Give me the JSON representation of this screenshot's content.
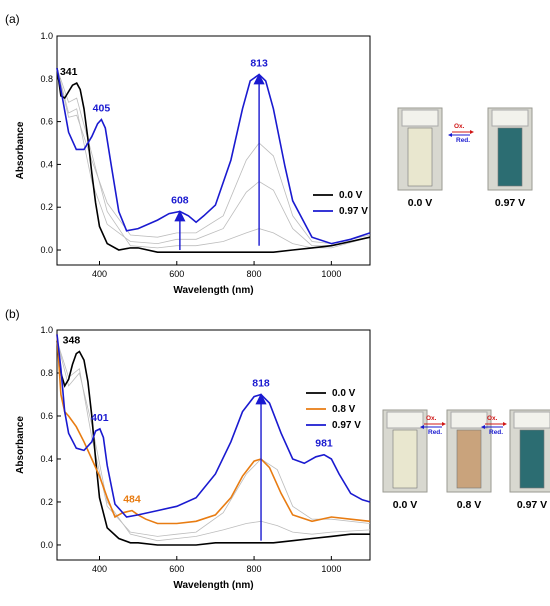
{
  "chart_data": [
    {
      "type": "line",
      "panel_label": "(a)",
      "xlabel": "Wavelength (nm)",
      "ylabel": "Absorbance",
      "xlim": [
        290,
        1100
      ],
      "ylim": [
        -0.07,
        1.0
      ],
      "xticks": [
        "400",
        "600",
        "800",
        "1000"
      ],
      "yticks": [
        "0.0",
        "0.2",
        "0.4",
        "0.6",
        "0.8",
        "1.0"
      ],
      "legend_position": "right",
      "series": [
        {
          "name": "0.0 V",
          "color": "#000000",
          "x": [
            290,
            300,
            310,
            320,
            330,
            341,
            350,
            360,
            370,
            380,
            390,
            400,
            420,
            450,
            480,
            500,
            550,
            600,
            650,
            700,
            750,
            800,
            850,
            900,
            950,
            1000,
            1050,
            1100
          ],
          "y": [
            0.85,
            0.72,
            0.71,
            0.74,
            0.77,
            0.78,
            0.75,
            0.66,
            0.52,
            0.36,
            0.22,
            0.11,
            0.03,
            0.0,
            0.01,
            0.01,
            -0.01,
            -0.01,
            -0.01,
            -0.01,
            -0.01,
            -0.01,
            -0.01,
            0.0,
            0.01,
            0.02,
            0.04,
            0.06
          ]
        },
        {
          "name": "0.97 V",
          "color": "#1a1ad0",
          "x": [
            290,
            300,
            320,
            340,
            360,
            380,
            395,
            405,
            415,
            430,
            450,
            470,
            500,
            550,
            580,
            608,
            630,
            650,
            670,
            700,
            740,
            770,
            790,
            813,
            830,
            850,
            880,
            900,
            950,
            1000,
            1050,
            1100
          ],
          "y": [
            0.85,
            0.75,
            0.55,
            0.47,
            0.47,
            0.53,
            0.59,
            0.61,
            0.57,
            0.4,
            0.18,
            0.09,
            0.1,
            0.14,
            0.17,
            0.18,
            0.16,
            0.13,
            0.16,
            0.21,
            0.42,
            0.66,
            0.79,
            0.82,
            0.79,
            0.66,
            0.39,
            0.23,
            0.06,
            0.03,
            0.05,
            0.08
          ]
        }
      ],
      "intermediate_scans": [
        {
          "x": [
            290,
            320,
            341,
            380,
            420,
            480,
            550,
            600,
            650,
            720,
            780,
            813,
            850,
            900,
            950,
            1000,
            1100
          ],
          "y": [
            0.85,
            0.62,
            0.63,
            0.42,
            0.22,
            0.07,
            0.06,
            0.08,
            0.08,
            0.16,
            0.42,
            0.5,
            0.44,
            0.16,
            0.04,
            0.03,
            0.07
          ]
        },
        {
          "x": [
            290,
            320,
            341,
            380,
            420,
            480,
            550,
            600,
            650,
            720,
            780,
            813,
            850,
            900,
            950,
            1000,
            1100
          ],
          "y": [
            0.85,
            0.64,
            0.66,
            0.32,
            0.12,
            0.04,
            0.03,
            0.05,
            0.05,
            0.1,
            0.27,
            0.32,
            0.28,
            0.1,
            0.02,
            0.02,
            0.06
          ]
        },
        {
          "x": [
            290,
            320,
            341,
            380,
            420,
            480,
            550,
            600,
            650,
            720,
            780,
            813,
            850,
            900,
            950,
            1000,
            1100
          ],
          "y": [
            0.85,
            0.69,
            0.71,
            0.45,
            0.18,
            0.02,
            0.01,
            0.02,
            0.02,
            0.04,
            0.08,
            0.1,
            0.08,
            0.03,
            0.01,
            0.01,
            0.06
          ]
        }
      ],
      "peak_labels": [
        {
          "text": "341",
          "color": "#000000",
          "x": 341,
          "y": 0.78
        },
        {
          "text": "405",
          "color": "#1a1ad0",
          "x": 405,
          "y": 0.61
        },
        {
          "text": "608",
          "color": "#1a1ad0",
          "x": 608,
          "y": 0.18
        },
        {
          "text": "813",
          "color": "#1a1ad0",
          "x": 813,
          "y": 0.82
        }
      ],
      "arrows": [
        {
          "x": 608,
          "y_from": 0.0,
          "y_to": 0.16
        },
        {
          "x": 813,
          "y_from": 0.02,
          "y_to": 0.8
        }
      ],
      "redox_labels": {
        "ox": "Ox.",
        "red": "Red."
      },
      "cuvettes": [
        {
          "label": "0.0 V",
          "color": "#e9e7cf"
        },
        {
          "label": "0.97 V",
          "color": "#2c6d72"
        }
      ]
    },
    {
      "type": "line",
      "panel_label": "(b)",
      "xlabel": "Wavelength (nm)",
      "ylabel": "Absorbance",
      "xlim": [
        290,
        1100
      ],
      "ylim": [
        -0.07,
        1.0
      ],
      "xticks": [
        "400",
        "600",
        "800",
        "1000"
      ],
      "yticks": [
        "0.0",
        "0.2",
        "0.4",
        "0.6",
        "0.8",
        "1.0"
      ],
      "legend_position": "top-right",
      "series": [
        {
          "name": "0.0 V",
          "color": "#000000",
          "x": [
            290,
            300,
            310,
            320,
            330,
            340,
            348,
            360,
            370,
            380,
            390,
            400,
            420,
            450,
            480,
            500,
            550,
            600,
            650,
            700,
            750,
            800,
            850,
            900,
            950,
            1000,
            1050,
            1100
          ],
          "y": [
            0.95,
            0.8,
            0.74,
            0.77,
            0.84,
            0.89,
            0.9,
            0.86,
            0.76,
            0.6,
            0.4,
            0.22,
            0.08,
            0.03,
            0.01,
            0.01,
            0.0,
            0.0,
            0.0,
            0.01,
            0.01,
            0.01,
            0.01,
            0.02,
            0.03,
            0.04,
            0.05,
            0.05
          ]
        },
        {
          "name": "0.8 V",
          "color": "#e87c12",
          "x": [
            290,
            300,
            310,
            320,
            340,
            360,
            380,
            400,
            420,
            440,
            460,
            484,
            500,
            520,
            550,
            580,
            600,
            650,
            700,
            740,
            770,
            800,
            818,
            840,
            870,
            900,
            950,
            1000,
            1050,
            1100
          ],
          "y": [
            0.98,
            0.7,
            0.62,
            0.6,
            0.55,
            0.48,
            0.4,
            0.32,
            0.22,
            0.13,
            0.15,
            0.16,
            0.14,
            0.12,
            0.1,
            0.1,
            0.1,
            0.11,
            0.14,
            0.22,
            0.32,
            0.39,
            0.4,
            0.36,
            0.24,
            0.14,
            0.11,
            0.13,
            0.12,
            0.11
          ]
        },
        {
          "name": "0.97 V",
          "color": "#1a1ad0",
          "x": [
            290,
            300,
            310,
            320,
            340,
            360,
            380,
            390,
            401,
            410,
            420,
            440,
            470,
            500,
            550,
            600,
            650,
            700,
            740,
            770,
            800,
            818,
            840,
            870,
            900,
            930,
            960,
            981,
            1000,
            1020,
            1050,
            1080,
            1100
          ],
          "y": [
            0.98,
            0.82,
            0.62,
            0.52,
            0.45,
            0.44,
            0.48,
            0.53,
            0.54,
            0.5,
            0.37,
            0.19,
            0.13,
            0.14,
            0.16,
            0.18,
            0.22,
            0.33,
            0.48,
            0.62,
            0.69,
            0.7,
            0.66,
            0.52,
            0.4,
            0.38,
            0.41,
            0.42,
            0.4,
            0.33,
            0.24,
            0.21,
            0.2
          ]
        }
      ],
      "intermediate_scans": [
        {
          "x": [
            290,
            320,
            348,
            380,
            420,
            480,
            550,
            600,
            650,
            720,
            780,
            818,
            860,
            900,
            950,
            1000,
            1100
          ],
          "y": [
            0.95,
            0.78,
            0.82,
            0.5,
            0.18,
            0.06,
            0.04,
            0.05,
            0.06,
            0.15,
            0.33,
            0.4,
            0.35,
            0.18,
            0.12,
            0.12,
            0.1
          ]
        },
        {
          "x": [
            290,
            320,
            348,
            380,
            420,
            480,
            550,
            600,
            650,
            720,
            780,
            818,
            860,
            900,
            950,
            1000,
            1100
          ],
          "y": [
            0.95,
            0.74,
            0.8,
            0.56,
            0.2,
            0.05,
            0.02,
            0.03,
            0.04,
            0.07,
            0.1,
            0.11,
            0.09,
            0.06,
            0.05,
            0.06,
            0.07
          ]
        }
      ],
      "peak_labels": [
        {
          "text": "348",
          "color": "#000000",
          "x": 348,
          "y": 0.9
        },
        {
          "text": "401",
          "color": "#1a1ad0",
          "x": 401,
          "y": 0.54
        },
        {
          "text": "484",
          "color": "#e87c12",
          "x": 484,
          "y": 0.16
        },
        {
          "text": "818",
          "color": "#1a1ad0",
          "x": 818,
          "y": 0.7
        },
        {
          "text": "981",
          "color": "#1a1ad0",
          "x": 981,
          "y": 0.42
        }
      ],
      "arrows": [
        {
          "x": 818,
          "y_from": 0.02,
          "y_to": 0.68
        }
      ],
      "redox_labels": {
        "ox": "Ox.",
        "red": "Red."
      },
      "cuvettes": [
        {
          "label": "0.0 V",
          "color": "#e9e7cf"
        },
        {
          "label": "0.8 V",
          "color": "#c9a37c"
        },
        {
          "label": "0.97 V",
          "color": "#2c6d72"
        }
      ]
    }
  ]
}
